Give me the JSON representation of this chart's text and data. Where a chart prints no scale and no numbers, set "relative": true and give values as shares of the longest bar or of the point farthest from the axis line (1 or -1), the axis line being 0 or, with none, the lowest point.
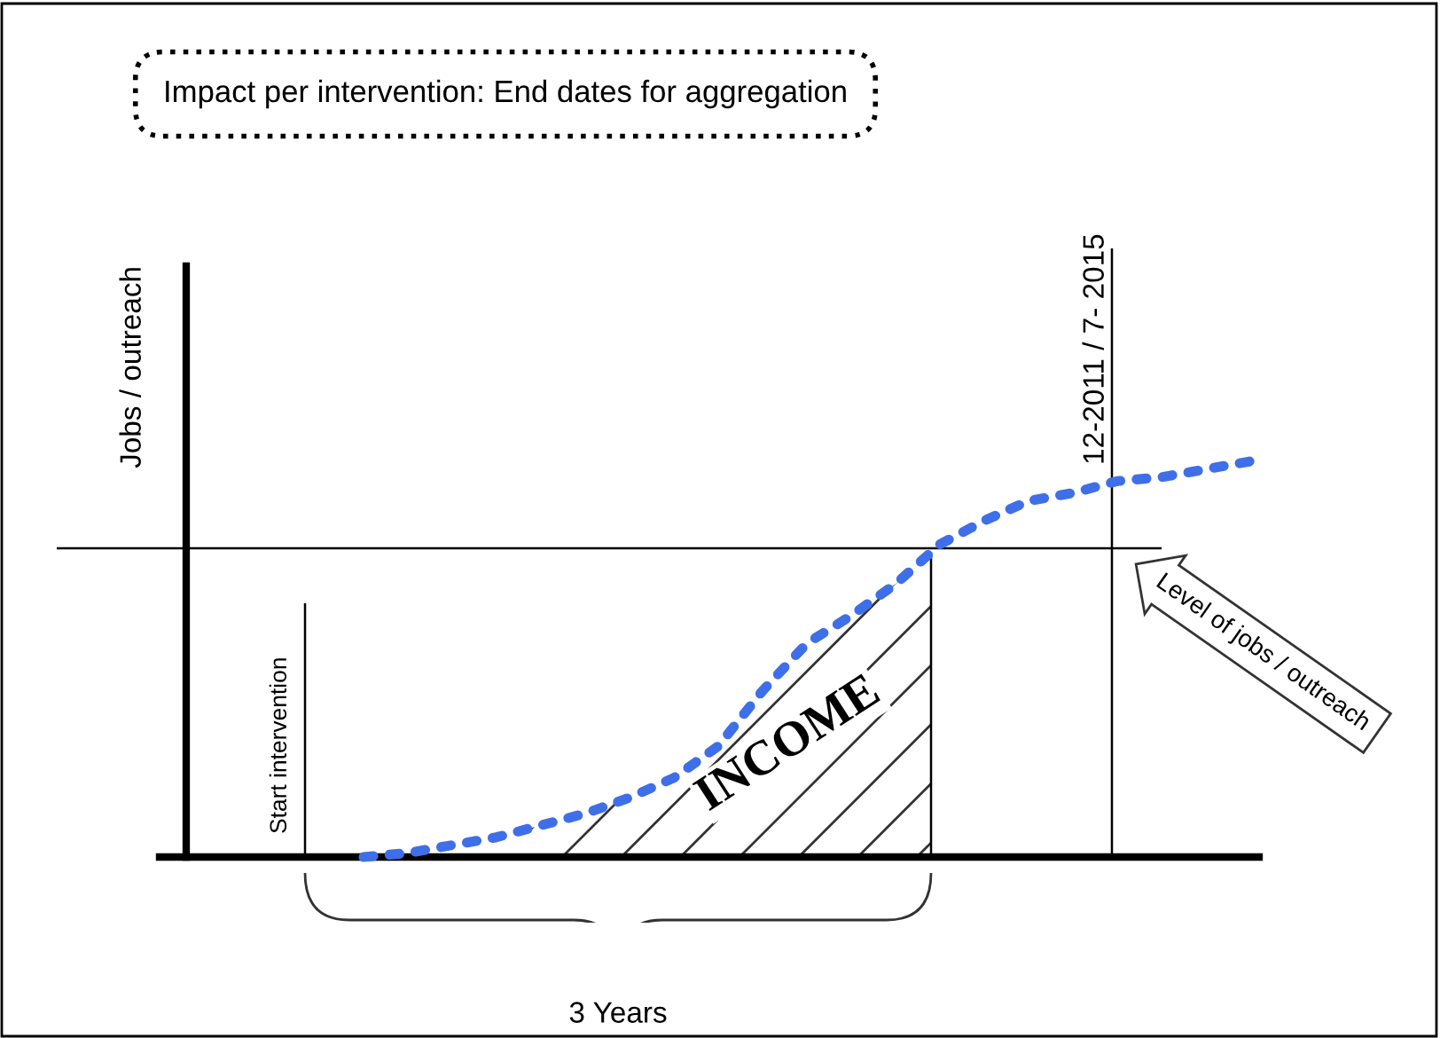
{
  "chart_data": {
    "type": "line",
    "relative": true,
    "title": "Impact per intervention: End dates for aggregation",
    "categories": [
      null,
      null,
      null,
      null,
      null,
      null,
      null,
      null,
      null,
      null,
      null,
      null,
      null,
      null,
      null,
      null,
      null,
      null,
      null,
      null,
      null
    ],
    "series": [
      {
        "color": "#3f6fe8",
        "values": [
          0,
          0.01,
          0.03,
          0.05,
          0.08,
          0.11,
          0.15,
          0.2,
          0.28,
          0.42,
          0.54,
          0.61,
          0.69,
          0.79,
          0.85,
          0.9,
          0.92,
          0.95,
          0.96,
          0.98,
          1
        ]
      }
    ],
    "line_style": "dotted",
    "marker": "none",
    "legend": false,
    "ref_lines": [
      {
        "axis": "y",
        "value": 0.78,
        "color": "#000000",
        "label": "Level of jobs / outreach"
      }
    ],
    "annotations": [
      "Jobs / outreach",
      "Start intervention",
      "12-2011 / 7- 2015",
      "INCOME",
      "3 Years"
    ]
  }
}
